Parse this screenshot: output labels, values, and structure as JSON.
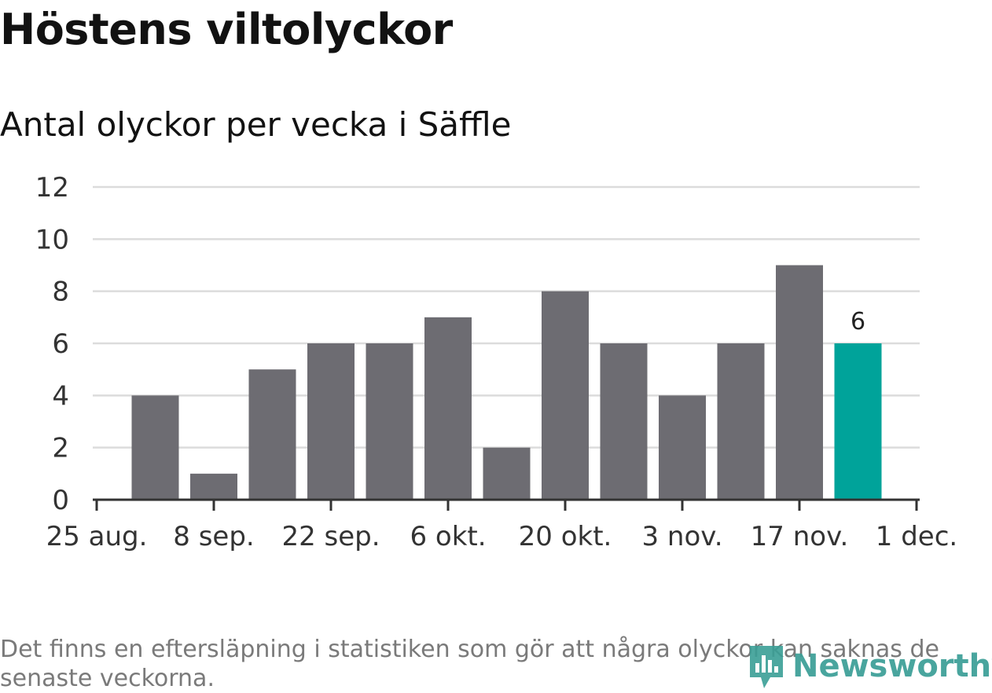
{
  "colors": {
    "bar": "#6d6c72",
    "highlight": "#00a39a",
    "grid": "#dcdcdc",
    "axis": "#333333",
    "logo": "#3a9e96"
  },
  "chart_data": {
    "type": "bar",
    "title": "Höstens viltolyckor",
    "subtitle": "Antal olyckor per vecka i Säffle",
    "xlabel": "",
    "ylabel": "",
    "ylim": [
      0,
      12
    ],
    "yticks": [
      0,
      2,
      4,
      6,
      8,
      10,
      12
    ],
    "x_tick_labels": [
      "25 aug.",
      "8 sep.",
      "22 sep.",
      "6 okt.",
      "20 okt.",
      "3 nov.",
      "17 nov.",
      "1 dec."
    ],
    "values": [
      4,
      1,
      5,
      6,
      6,
      7,
      2,
      8,
      6,
      4,
      6,
      9,
      6
    ],
    "highlight_index": 12,
    "data_labels": [
      {
        "index": 12,
        "text": "6"
      }
    ],
    "grid": true
  },
  "footnote": "Det finns en eftersläpning i statistiken som gör att några olyckor kan saknas de senaste veckorna.",
  "logo": {
    "text": "Newsworthy",
    "icon": "newsworthy-logo-icon"
  }
}
